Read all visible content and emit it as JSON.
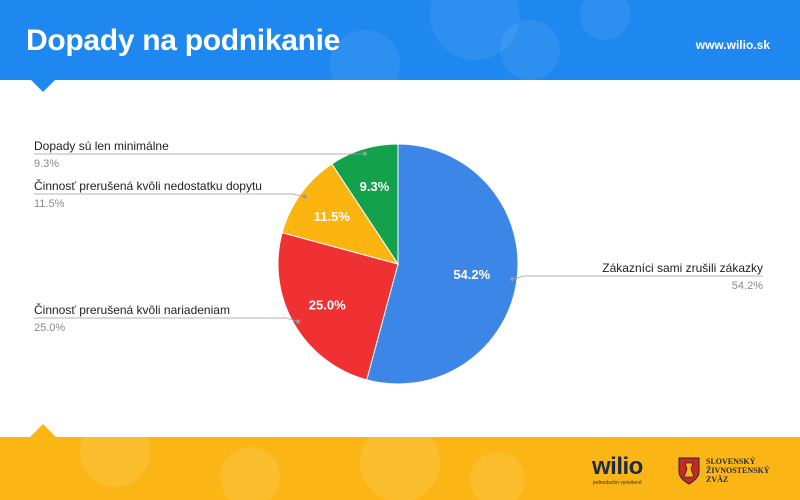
{
  "header": {
    "title": "Dopady na podnikanie",
    "url": "www.wilio.sk"
  },
  "colors": {
    "header_bg": "#1e88f0",
    "footer_bg": "#fbb615"
  },
  "chart_data": {
    "type": "pie",
    "title": "",
    "slices": [
      {
        "label": "Zákazníci sami zrušili zákazky",
        "value": 54.2,
        "label_text": "54.2%",
        "color": "#3b86e6"
      },
      {
        "label": "Činnosť prerušená kvôli nariadeniam",
        "value": 25.0,
        "label_text": "25.0%",
        "color": "#ef3133"
      },
      {
        "label": "Činnosť prerušená kvôli nedostatku dopytu",
        "value": 11.5,
        "label_text": "11.5%",
        "color": "#fbb410"
      },
      {
        "label": "Dopady sú len minimálne",
        "value": 9.3,
        "label_text": "9.3%",
        "color": "#13a14b"
      }
    ],
    "start": "12 o'clock",
    "direction": "clockwise",
    "legend": "callout labels outside slices"
  },
  "footer": {
    "wilio_logo": "wilio",
    "wilio_tagline": "jednoducho vyriešené",
    "szz_logo_lines": [
      "SLOVENSKÝ",
      "ŽIVNOSTENSKÝ",
      "ZVÄZ"
    ],
    "szz_crest_icon": "crest-icon"
  }
}
